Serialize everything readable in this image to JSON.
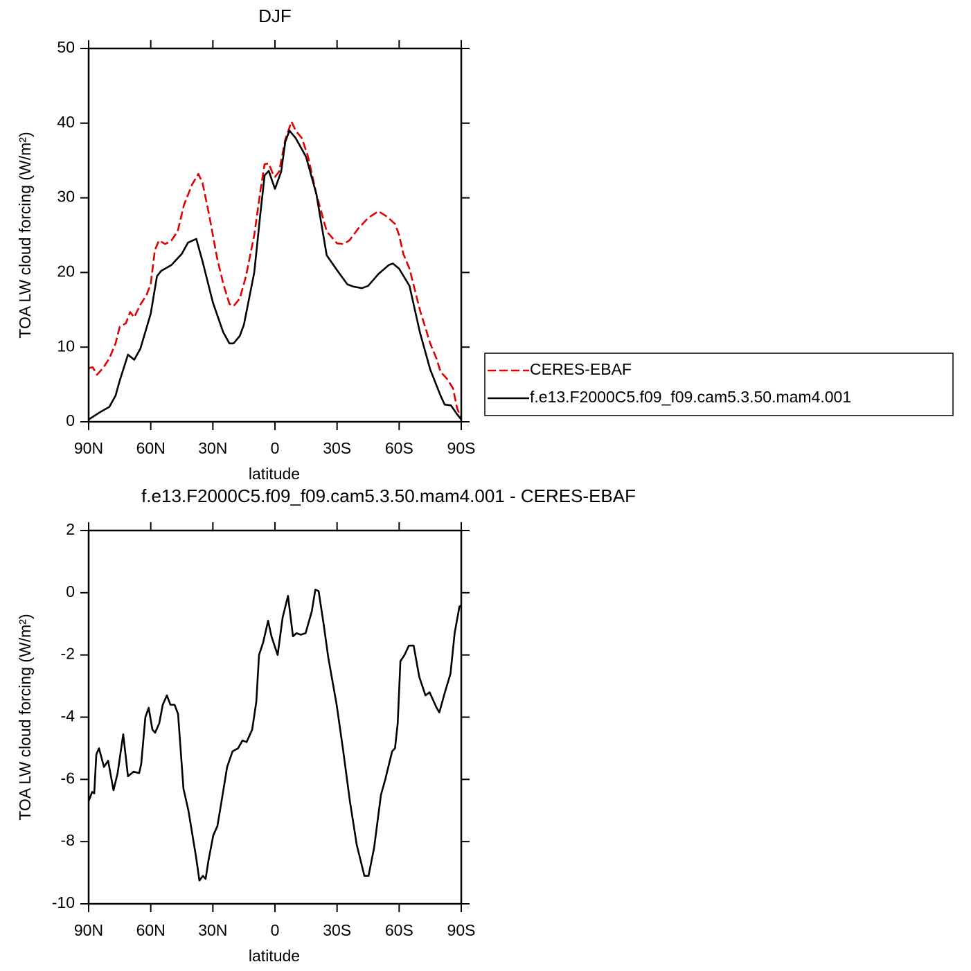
{
  "chart_data": [
    {
      "type": "line",
      "title": "DJF",
      "x_label": "latitude",
      "y_label": "TOA LW cloud forcing (W/m²)",
      "xlim": [
        90,
        -90
      ],
      "xticks": [
        {
          "value": 90,
          "label": "90N"
        },
        {
          "value": 60,
          "label": "60N"
        },
        {
          "value": 30,
          "label": "30N"
        },
        0,
        {
          "value": -30,
          "label": "30S"
        },
        {
          "value": -60,
          "label": "60S"
        },
        {
          "value": -90,
          "label": "90S"
        }
      ],
      "ylim": [
        0,
        50
      ],
      "yticks": [
        0,
        10,
        20,
        30,
        40,
        50
      ],
      "legend": "right",
      "series": [
        {
          "name": "CERES-EBAF",
          "color": "#e00000",
          "dashed": true,
          "x": [
            90,
            88,
            86,
            83,
            80,
            77,
            75,
            72,
            70,
            68,
            65,
            62,
            60,
            58,
            56,
            53,
            50,
            47,
            44,
            40,
            37,
            35,
            32,
            28,
            25,
            22,
            20,
            17,
            14,
            10,
            7,
            5,
            3,
            1,
            0,
            -2,
            -5,
            -8,
            -10,
            -13,
            -16,
            -20,
            -25,
            -30,
            -33,
            -36,
            -40,
            -45,
            -50,
            -54,
            -58,
            -60,
            -62,
            -65,
            -70,
            -75,
            -78,
            -80,
            -83,
            -86,
            -88,
            -90
          ],
          "values": [
            7.2,
            7.3,
            6.3,
            7.2,
            8.5,
            10.5,
            12.7,
            13.2,
            14.7,
            14.0,
            15.7,
            17.0,
            18.5,
            23.0,
            24.3,
            23.8,
            24.3,
            25.5,
            29.0,
            31.8,
            33.2,
            32.0,
            28.0,
            22.0,
            18.5,
            15.8,
            15.5,
            16.5,
            19.5,
            25.0,
            31.0,
            34.5,
            34.6,
            33.2,
            32.8,
            33.5,
            37.8,
            40.2,
            39.0,
            38.0,
            35.5,
            30.5,
            25.5,
            23.9,
            23.8,
            24.3,
            25.8,
            27.3,
            28.2,
            27.5,
            26.5,
            25.0,
            22.5,
            20.5,
            15.0,
            10.5,
            8.5,
            6.7,
            5.8,
            4.5,
            1.8,
            0.5
          ]
        },
        {
          "name": "f.e13.F2000C5.f09_f09.cam5.3.50.mam4.001",
          "color": "#000000",
          "dashed": false,
          "x": [
            90,
            85,
            80,
            77,
            75,
            71,
            68,
            65,
            60,
            57,
            55,
            50,
            45,
            42,
            38,
            35,
            30,
            25,
            22,
            20,
            17,
            15,
            10,
            7,
            5,
            3,
            0,
            -3,
            -5,
            -7,
            -10,
            -15,
            -20,
            -25,
            -30,
            -35,
            -38,
            -42,
            -45,
            -50,
            -55,
            -57,
            -60,
            -65,
            -70,
            -75,
            -80,
            -82,
            -85,
            -88,
            -90
          ],
          "values": [
            0.3,
            1.2,
            2.0,
            3.5,
            5.5,
            9.0,
            8.3,
            9.8,
            14.5,
            19.5,
            20.2,
            21.0,
            22.5,
            24.0,
            24.5,
            21.5,
            16.0,
            12.0,
            10.5,
            10.5,
            11.5,
            13.0,
            20.0,
            28.0,
            33.0,
            33.6,
            31.2,
            33.5,
            37.5,
            39.0,
            38.0,
            35.5,
            30.5,
            22.3,
            20.3,
            18.4,
            18.1,
            17.9,
            18.2,
            19.8,
            21.0,
            21.2,
            20.5,
            18.2,
            12.0,
            7.0,
            3.5,
            2.3,
            2.2,
            1.0,
            0.3
          ]
        }
      ]
    },
    {
      "type": "line",
      "title": "f.e13.F2000C5.f09_f09.cam5.3.50.mam4.001 - CERES-EBAF",
      "x_label": "latitude",
      "y_label": "TOA LW cloud forcing (W/m²)",
      "xlim": [
        90,
        -90
      ],
      "xticks": [
        {
          "value": 90,
          "label": "90N"
        },
        {
          "value": 60,
          "label": "60N"
        },
        {
          "value": 30,
          "label": "30N"
        },
        0,
        {
          "value": -30,
          "label": "30S"
        },
        {
          "value": -60,
          "label": "60S"
        },
        {
          "value": -90,
          "label": "90S"
        }
      ],
      "ylim": [
        -10,
        2
      ],
      "yticks": [
        -10,
        -8,
        -6,
        -4,
        -2,
        0,
        2
      ],
      "color": "#000000",
      "x": [
        90,
        88.3,
        87.3,
        86.3,
        85,
        82.6,
        80.6,
        78,
        76,
        73.3,
        71,
        68.3,
        65.6,
        64.6,
        62.6,
        61,
        59.2,
        57.9,
        55.9,
        54.2,
        52.2,
        50.5,
        48.5,
        46.8,
        44.2,
        41.8,
        38.1,
        36.5,
        34.8,
        33.5,
        32.1,
        29.8,
        27.8,
        25.8,
        23.1,
        20.5,
        17.8,
        15.7,
        13.7,
        11,
        9,
        7.7,
        5.7,
        3.3,
        1.7,
        -1.3,
        -3.7,
        -6.3,
        -8.7,
        -10.4,
        -12.4,
        -14.8,
        -17.8,
        -19.5,
        -21.1,
        -23.5,
        -25.8,
        -29.8,
        -32.8,
        -36.2,
        -39.5,
        -43.2,
        -45.2,
        -47.9,
        -51.2,
        -53.3,
        -56.6,
        -58,
        -59.3,
        -60.6,
        -62.6,
        -64.7,
        -67,
        -69.7,
        -72.7,
        -74.7,
        -78.1,
        -79.4,
        -82.1,
        -84.8,
        -86.8,
        -89.1,
        -90
      ],
      "values": [
        -6.7,
        -6.4,
        -6.45,
        -5.2,
        -5.0,
        -5.6,
        -5.4,
        -6.35,
        -5.8,
        -4.55,
        -5.9,
        -5.75,
        -5.8,
        -5.5,
        -4.0,
        -3.7,
        -4.4,
        -4.5,
        -4.2,
        -3.6,
        -3.3,
        -3.6,
        -3.6,
        -3.9,
        -6.3,
        -7.0,
        -8.5,
        -9.25,
        -9.1,
        -9.2,
        -8.6,
        -7.8,
        -7.5,
        -6.7,
        -5.6,
        -5.1,
        -5.0,
        -4.75,
        -4.8,
        -4.4,
        -3.5,
        -2.0,
        -1.6,
        -0.9,
        -1.4,
        -2.0,
        -0.8,
        -0.1,
        -1.4,
        -1.3,
        -1.35,
        -1.3,
        -0.6,
        0.1,
        0.05,
        -1.0,
        -2.1,
        -3.6,
        -5.0,
        -6.7,
        -8.1,
        -9.1,
        -9.1,
        -8.2,
        -6.5,
        -6.0,
        -5.1,
        -5.0,
        -4.2,
        -2.2,
        -2.0,
        -1.7,
        -1.7,
        -2.7,
        -3.3,
        -3.2,
        -3.7,
        -3.85,
        -3.2,
        -2.6,
        -1.3,
        -0.45,
        -0.4
      ]
    }
  ]
}
